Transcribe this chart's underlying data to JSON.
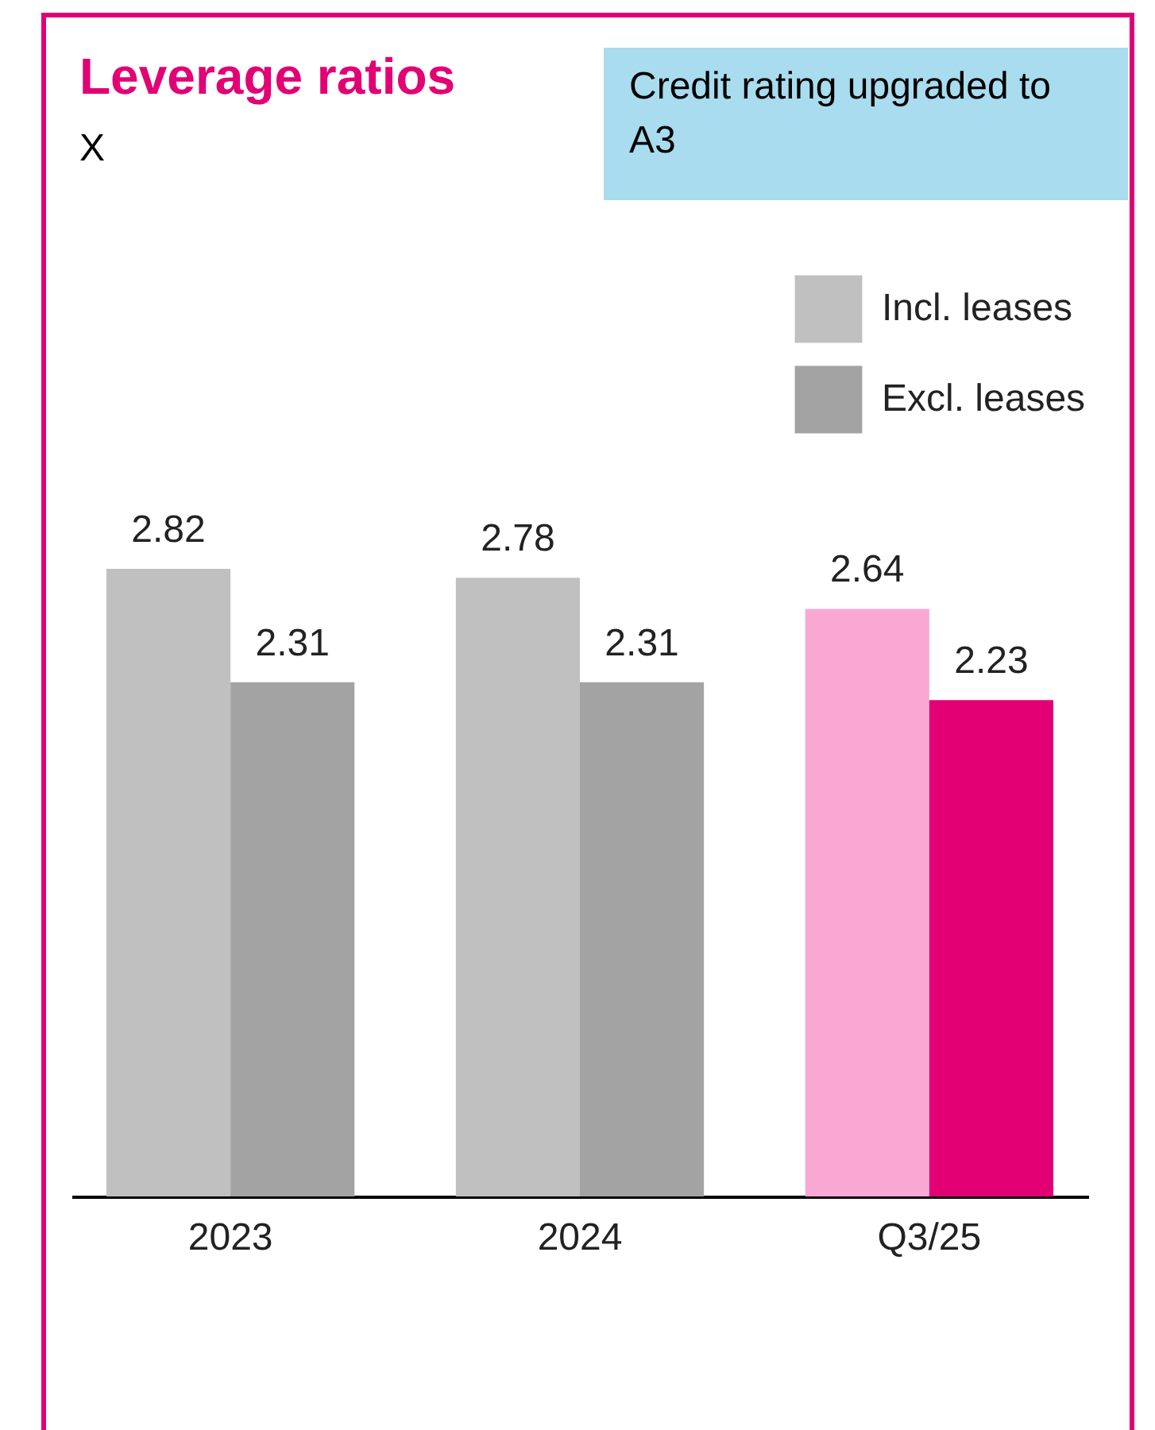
{
  "chart_data": {
    "type": "bar",
    "title": "Leverage ratios",
    "subtitle": "X",
    "annotations": [
      "Credit rating upgraded to A3"
    ],
    "categories": [
      "2023",
      "2024",
      "Q3/25"
    ],
    "series": [
      {
        "name": "Incl. leases",
        "color": "#c0c0c0",
        "colors": [
          "#c0c0c0",
          "#c0c0c0",
          "#f9a8d4"
        ],
        "values": [
          2.82,
          2.78,
          2.64
        ]
      },
      {
        "name": "Excl. leases",
        "color": "#a3a3a3",
        "colors": [
          "#a3a3a3",
          "#a3a3a3",
          "#e20074"
        ],
        "values": [
          2.31,
          2.31,
          2.23
        ]
      }
    ],
    "data_labels": true,
    "legend": "top right",
    "tick_labels": "x"
  }
}
